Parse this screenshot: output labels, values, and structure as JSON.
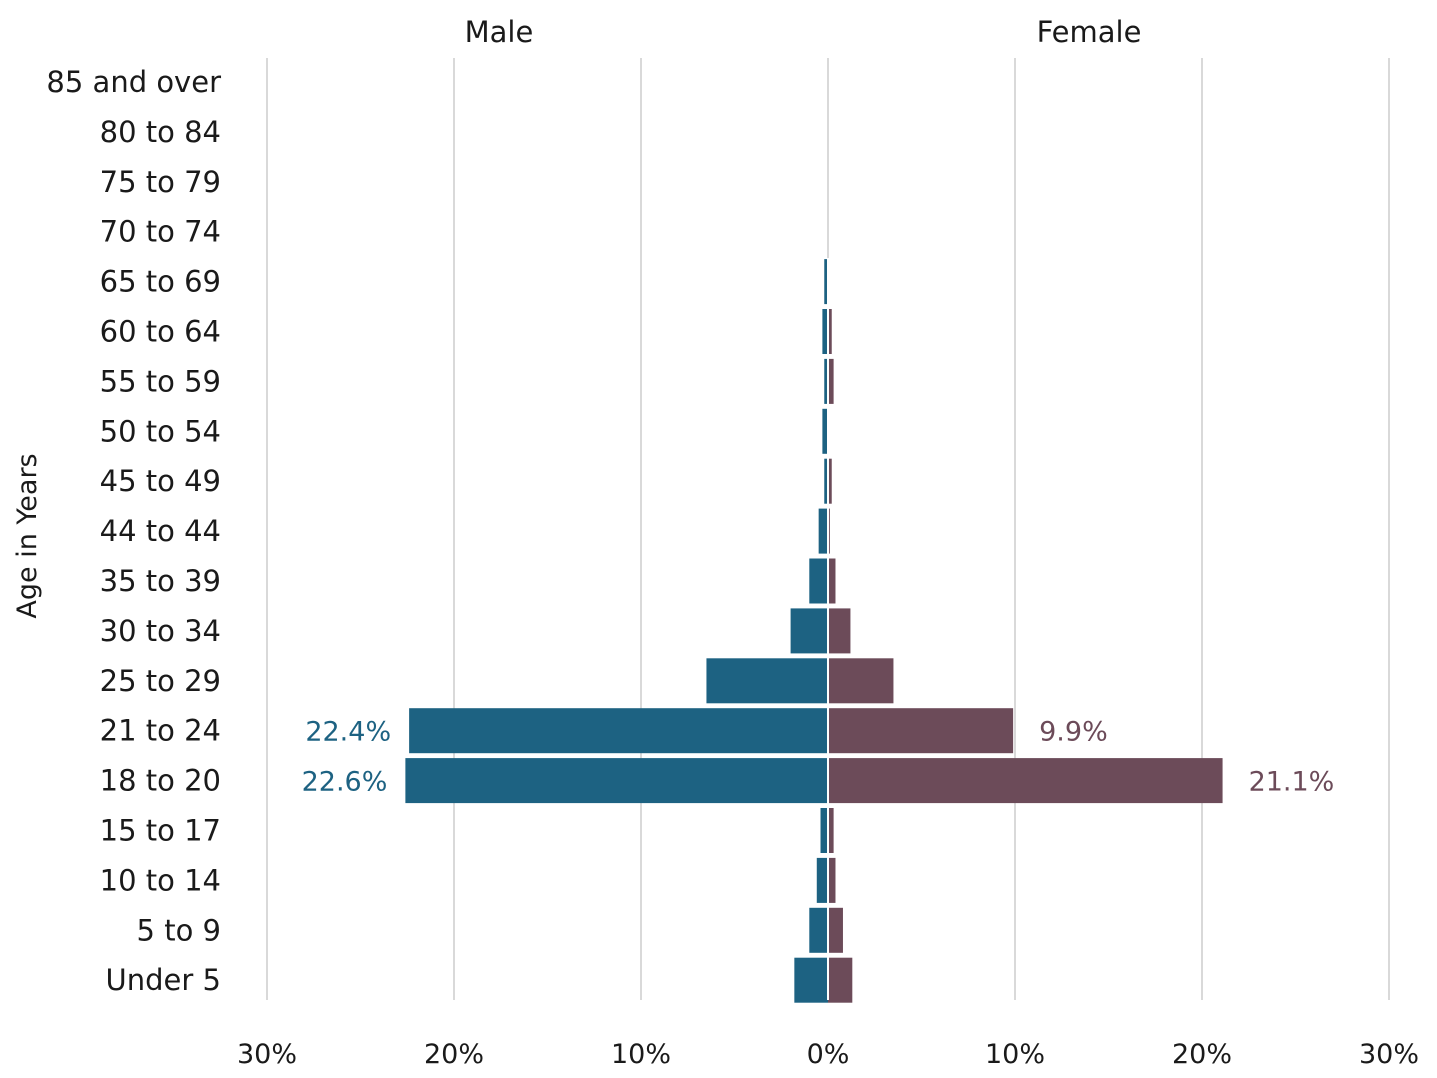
{
  "chart_data": {
    "type": "bar",
    "orientation": "horizontal",
    "layout": "population-pyramid",
    "ylabel": "Age in Years",
    "categories": [
      "85 and over",
      "80 to 84",
      "75 to 79",
      "70 to 74",
      "65 to 69",
      "60 to 64",
      "55 to 59",
      "50 to 54",
      "45 to 49",
      "44 to 44",
      "35 to 39",
      "30 to 34",
      "25 to 29",
      "21 to 24",
      "18 to 20",
      "15 to 17",
      "10 to 14",
      "5 to 9",
      "Under 5"
    ],
    "series": [
      {
        "name": "Male",
        "side": "left",
        "color": "#1d6282",
        "values": [
          0,
          0,
          0,
          0,
          0.2,
          0.3,
          0.2,
          0.3,
          0.2,
          0.5,
          1.0,
          2.0,
          6.5,
          22.4,
          22.6,
          0.4,
          0.6,
          1.0,
          1.8
        ]
      },
      {
        "name": "Female",
        "side": "right",
        "color": "#6c4b59",
        "values": [
          0,
          0,
          0,
          0,
          0.0,
          0.2,
          0.3,
          0.0,
          0.2,
          0.1,
          0.4,
          1.2,
          3.5,
          9.9,
          21.1,
          0.3,
          0.4,
          0.8,
          1.3
        ]
      }
    ],
    "data_labels": [
      {
        "series": "Male",
        "category": "21 to 24",
        "text": "22.4%"
      },
      {
        "series": "Male",
        "category": "18 to 20",
        "text": "22.6%"
      },
      {
        "series": "Female",
        "category": "21 to 24",
        "text": "9.9%"
      },
      {
        "series": "Female",
        "category": "18 to 20",
        "text": "21.1%"
      }
    ],
    "xlim": [
      -30,
      30
    ],
    "xticks": [
      -30,
      -20,
      -10,
      0,
      10,
      20,
      30
    ],
    "xtick_labels": [
      "30%",
      "20%",
      "10%",
      "0%",
      "10%",
      "20%",
      "30%"
    ],
    "grid": "vertical"
  }
}
